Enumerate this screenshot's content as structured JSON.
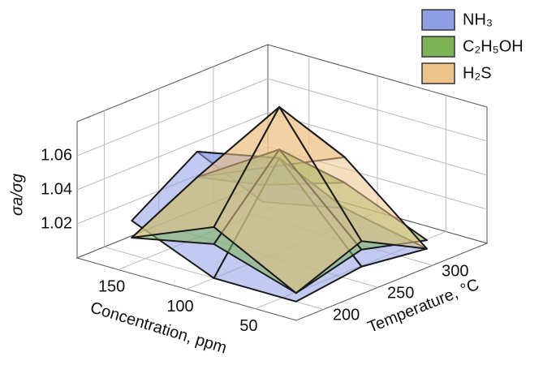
{
  "chart_data": {
    "type": "surface3d",
    "x_label": "Concentration, ppm",
    "y_label": "Temperature, °C",
    "z_label": "σa/σg",
    "x": [
      160,
      100,
      40
    ],
    "y": [
      200,
      260,
      320
    ],
    "xlim": [
      180,
      20
    ],
    "ylim": [
      175,
      350
    ],
    "zlim": [
      1.0,
      1.08
    ],
    "xticks": [
      150,
      100,
      50
    ],
    "yticks": [
      200,
      250,
      300
    ],
    "zticks": [
      1.02,
      1.04,
      1.06
    ],
    "grid": true,
    "legend": "top-right",
    "series": [
      {
        "name": "NH₃",
        "color": "#8f9fe6",
        "values": [
          [
            1.02,
            1.045,
            1.0
          ],
          [
            1.0,
            1.055,
            1.01
          ],
          [
            1.0,
            1.005,
            1.0
          ]
        ]
      },
      {
        "name": "C₂H₅OH",
        "color": "#7db356",
        "values": [
          [
            1.01,
            1.03,
            1.01
          ],
          [
            1.02,
            1.06,
            1.025
          ],
          [
            1.005,
            1.015,
            1.005
          ]
        ]
      },
      {
        "name": "H₂S",
        "color": "#efc48c",
        "values": [
          [
            1.01,
            1.03,
            1.02
          ],
          [
            1.03,
            1.085,
            1.04
          ],
          [
            1.005,
            1.02,
            1.0
          ]
        ]
      }
    ]
  }
}
